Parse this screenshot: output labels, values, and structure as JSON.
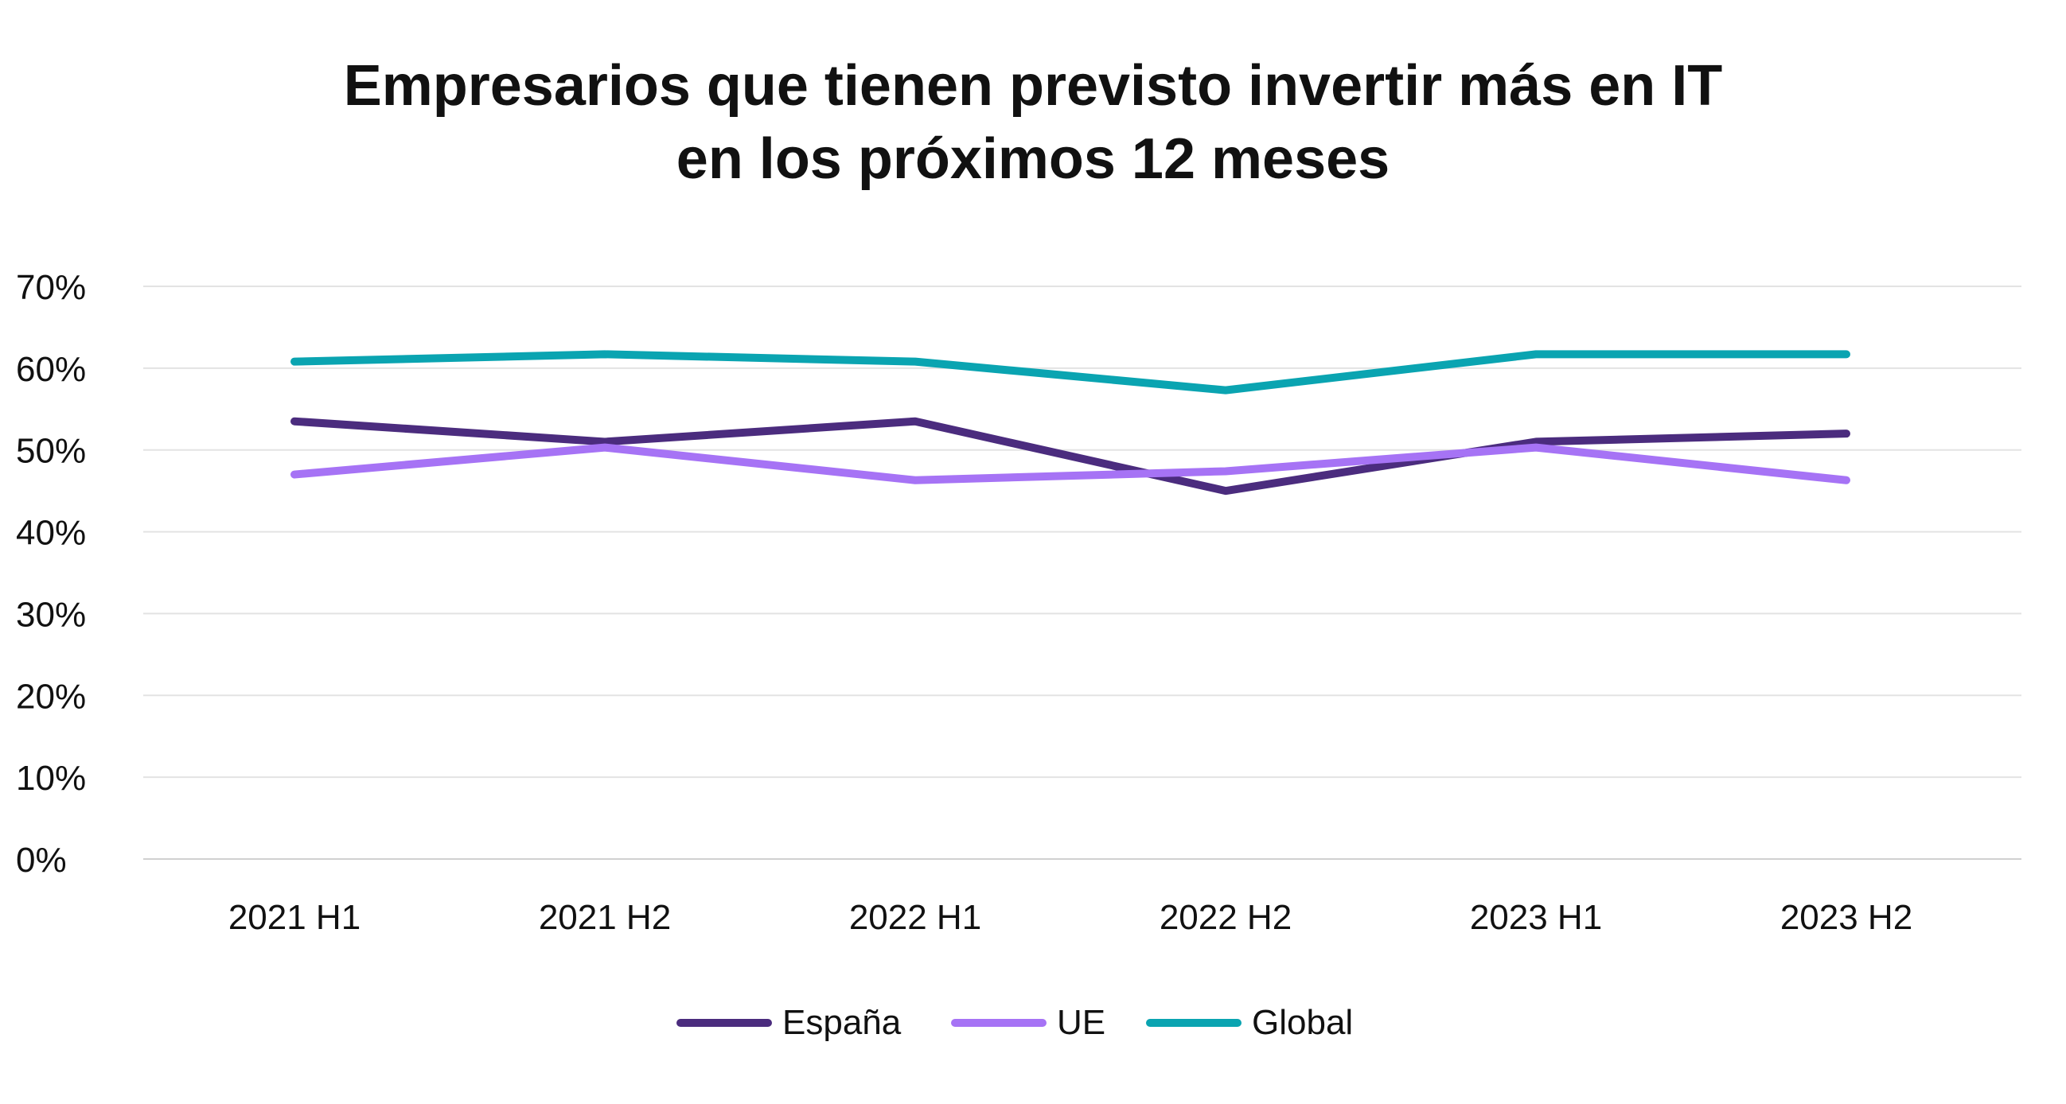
{
  "chart_data": {
    "type": "line",
    "title": [
      "Empresarios que tienen previsto invertir más en IT",
      "en los próximos 12 meses"
    ],
    "categories": [
      "2021 H1",
      "2021 H2",
      "2022 H1",
      "2022 H2",
      "2023 H1",
      "2023 H2"
    ],
    "yticks": [
      "0%",
      "10%",
      "20%",
      "30%",
      "40%",
      "50%",
      "60%",
      "70%"
    ],
    "ylim": [
      0,
      70
    ],
    "grid": true,
    "legend_position": "bottom",
    "series": [
      {
        "name": "España",
        "color": "#4b2c7e",
        "values": [
          53.5,
          51,
          53.5,
          45,
          51,
          52
        ]
      },
      {
        "name": "UE",
        "color": "#a673f5",
        "values": [
          47,
          50.3,
          46.3,
          47.4,
          50.3,
          46.3
        ]
      },
      {
        "name": "Global",
        "color": "#0aa4b1",
        "values": [
          60.8,
          61.7,
          60.8,
          57.3,
          61.7,
          61.7
        ]
      }
    ]
  }
}
